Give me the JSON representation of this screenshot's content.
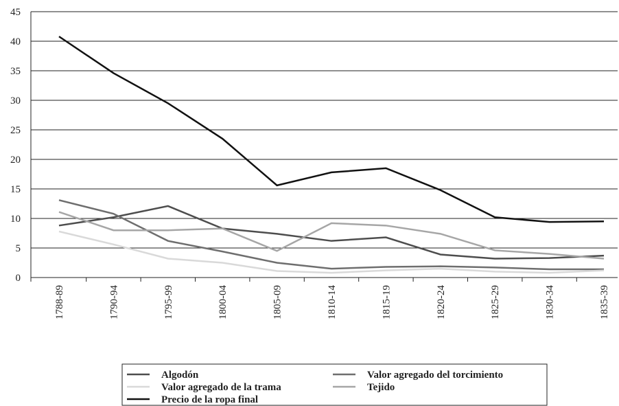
{
  "chart_data": {
    "type": "line",
    "categories": [
      "1788-89",
      "1790-94",
      "1795-99",
      "1800-04",
      "1805-09",
      "1810-14",
      "1815-19",
      "1820-24",
      "1825-29",
      "1830-34",
      "1835-39"
    ],
    "series": [
      {
        "name": "Algodón",
        "color": "#4d4d4d",
        "values": [
          8.8,
          10.2,
          12.1,
          8.3,
          7.4,
          6.2,
          6.8,
          3.9,
          3.2,
          3.3,
          3.7
        ]
      },
      {
        "name": "Valor agregado del torcimiento",
        "color": "#6e6e6e",
        "values": [
          13.1,
          10.8,
          6.2,
          4.4,
          2.5,
          1.5,
          1.8,
          1.9,
          1.7,
          1.4,
          1.4
        ]
      },
      {
        "name": "Valor agregado de la trama",
        "color": "#d9d9d9",
        "values": [
          7.8,
          5.6,
          3.2,
          2.5,
          1.1,
          0.8,
          1.2,
          1.5,
          1.0,
          0.8,
          1.2
        ]
      },
      {
        "name": "Tejido",
        "color": "#a6a6a6",
        "values": [
          11.1,
          8.0,
          8.0,
          8.3,
          4.5,
          9.2,
          8.8,
          7.4,
          4.6,
          4.0,
          3.2
        ]
      },
      {
        "name": "Precio de la ropa final",
        "color": "#111111",
        "values": [
          40.8,
          34.6,
          29.5,
          23.5,
          15.6,
          17.8,
          18.5,
          14.8,
          10.2,
          9.4,
          9.5
        ]
      }
    ],
    "ylim": [
      0,
      45
    ],
    "yticks": [
      0,
      5,
      10,
      15,
      20,
      25,
      30,
      35,
      40,
      45
    ],
    "grid": true,
    "legend": "bottom"
  }
}
